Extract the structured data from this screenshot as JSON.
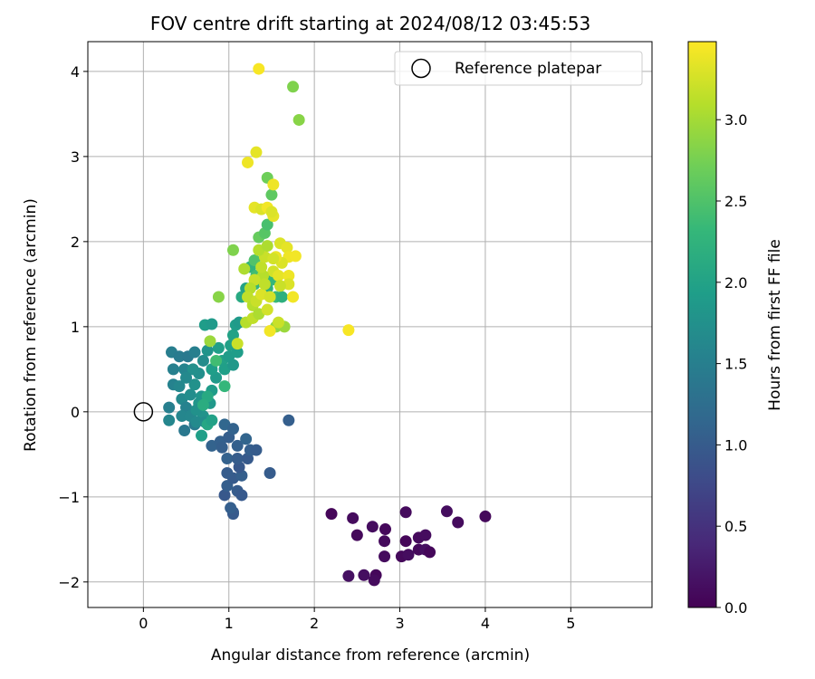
{
  "chart_data": {
    "type": "scatter",
    "title": "FOV centre drift starting at 2024/08/12 03:45:53",
    "xlabel": "Angular distance from reference (arcmin)",
    "ylabel": "Rotation from reference (arcmin)",
    "xlim": [
      -0.65,
      5.95
    ],
    "ylim": [
      -2.3,
      4.35
    ],
    "xticks": [
      "0",
      "1",
      "2",
      "3",
      "4",
      "5"
    ],
    "yticks": [
      "−2",
      "−1",
      "0",
      "1",
      "2",
      "3",
      "4"
    ],
    "grid": true,
    "legend": {
      "position": "top-right",
      "entries": [
        "Reference platepar"
      ]
    },
    "reference_point": {
      "x": 0,
      "y": 0,
      "marker": "open-circle",
      "label": "Reference platepar"
    },
    "colorbar": {
      "label": "Hours from first FF file",
      "colormap": "viridis",
      "range": [
        0,
        3.48
      ],
      "ticks": [
        "0.0",
        "0.5",
        "1.0",
        "1.5",
        "2.0",
        "2.5",
        "3.0"
      ],
      "colors": [
        "#440154",
        "#482878",
        "#3e4a89",
        "#31688e",
        "#26828e",
        "#1f9e89",
        "#35b779",
        "#6ece58",
        "#b5de2b",
        "#fde725"
      ]
    },
    "series": [
      {
        "points": [
          {
            "x": 2.2,
            "y": -1.2,
            "c": 0.05
          },
          {
            "x": 2.45,
            "y": -1.25,
            "c": 0.1
          },
          {
            "x": 2.5,
            "y": -1.45,
            "c": 0.08
          },
          {
            "x": 2.68,
            "y": -1.35,
            "c": 0.12
          },
          {
            "x": 2.83,
            "y": -1.38,
            "c": 0.07
          },
          {
            "x": 2.82,
            "y": -1.52,
            "c": 0.09
          },
          {
            "x": 2.82,
            "y": -1.7,
            "c": 0.11
          },
          {
            "x": 2.4,
            "y": -1.93,
            "c": 0.15
          },
          {
            "x": 2.58,
            "y": -1.92,
            "c": 0.13
          },
          {
            "x": 2.72,
            "y": -1.92,
            "c": 0.06
          },
          {
            "x": 2.7,
            "y": -1.98,
            "c": 0.1
          },
          {
            "x": 3.02,
            "y": -1.7,
            "c": 0.08
          },
          {
            "x": 3.1,
            "y": -1.68,
            "c": 0.12
          },
          {
            "x": 3.07,
            "y": -1.52,
            "c": 0.05
          },
          {
            "x": 3.07,
            "y": -1.18,
            "c": 0.1
          },
          {
            "x": 3.22,
            "y": -1.48,
            "c": 0.09
          },
          {
            "x": 3.3,
            "y": -1.45,
            "c": 0.11
          },
          {
            "x": 3.22,
            "y": -1.62,
            "c": 0.07
          },
          {
            "x": 3.3,
            "y": -1.62,
            "c": 0.14
          },
          {
            "x": 3.35,
            "y": -1.65,
            "c": 0.06
          },
          {
            "x": 3.55,
            "y": -1.17,
            "c": 0.12
          },
          {
            "x": 3.68,
            "y": -1.3,
            "c": 0.1
          },
          {
            "x": 4.0,
            "y": -1.23,
            "c": 0.08
          },
          {
            "x": 1.7,
            "y": -0.1,
            "c": 1.05
          },
          {
            "x": 1.48,
            "y": -0.72,
            "c": 1.0
          },
          {
            "x": 0.95,
            "y": -0.98,
            "c": 0.95
          },
          {
            "x": 1.05,
            "y": -1.18,
            "c": 1.02
          },
          {
            "x": 1.05,
            "y": -1.2,
            "c": 0.98
          },
          {
            "x": 1.02,
            "y": -1.13,
            "c": 1.05
          },
          {
            "x": 1.1,
            "y": -0.93,
            "c": 1.0
          },
          {
            "x": 1.15,
            "y": -0.98,
            "c": 0.97
          },
          {
            "x": 0.98,
            "y": -0.87,
            "c": 1.03
          },
          {
            "x": 1.05,
            "y": -0.78,
            "c": 0.99
          },
          {
            "x": 0.98,
            "y": -0.72,
            "c": 1.01
          },
          {
            "x": 1.15,
            "y": -0.75,
            "c": 1.04
          },
          {
            "x": 1.12,
            "y": -0.65,
            "c": 0.96
          },
          {
            "x": 0.98,
            "y": -0.55,
            "c": 1.08
          },
          {
            "x": 1.1,
            "y": -0.55,
            "c": 1.02
          },
          {
            "x": 1.22,
            "y": -0.55,
            "c": 0.98
          },
          {
            "x": 1.25,
            "y": -0.45,
            "c": 1.05
          },
          {
            "x": 1.32,
            "y": -0.45,
            "c": 1.0
          },
          {
            "x": 0.8,
            "y": -0.4,
            "c": 1.1
          },
          {
            "x": 0.9,
            "y": -0.35,
            "c": 1.07
          },
          {
            "x": 1.0,
            "y": -0.3,
            "c": 1.03
          },
          {
            "x": 1.1,
            "y": -0.4,
            "c": 1.06
          },
          {
            "x": 1.2,
            "y": -0.32,
            "c": 1.12
          },
          {
            "x": 0.95,
            "y": -0.15,
            "c": 1.15
          },
          {
            "x": 1.05,
            "y": -0.2,
            "c": 1.09
          },
          {
            "x": 0.92,
            "y": -0.42,
            "c": 1.04
          },
          {
            "x": 0.3,
            "y": 0.05,
            "c": 1.5
          },
          {
            "x": 0.3,
            "y": -0.1,
            "c": 1.6
          },
          {
            "x": 0.35,
            "y": 0.32,
            "c": 1.55
          },
          {
            "x": 0.35,
            "y": 0.5,
            "c": 1.52
          },
          {
            "x": 0.33,
            "y": 0.7,
            "c": 1.48
          },
          {
            "x": 0.42,
            "y": 0.65,
            "c": 1.45
          },
          {
            "x": 0.48,
            "y": 0.5,
            "c": 1.58
          },
          {
            "x": 0.52,
            "y": 0.65,
            "c": 1.42
          },
          {
            "x": 0.6,
            "y": 0.7,
            "c": 1.5
          },
          {
            "x": 0.42,
            "y": 0.3,
            "c": 1.62
          },
          {
            "x": 0.45,
            "y": 0.15,
            "c": 1.65
          },
          {
            "x": 0.5,
            "y": 0.05,
            "c": 1.55
          },
          {
            "x": 0.45,
            "y": -0.05,
            "c": 1.6
          },
          {
            "x": 0.48,
            "y": -0.22,
            "c": 1.4
          },
          {
            "x": 0.6,
            "y": -0.15,
            "c": 1.45
          },
          {
            "x": 0.55,
            "y": 0.2,
            "c": 1.7
          },
          {
            "x": 0.6,
            "y": 0.32,
            "c": 1.75
          },
          {
            "x": 0.65,
            "y": 0.45,
            "c": 1.72
          },
          {
            "x": 0.7,
            "y": 0.6,
            "c": 1.68
          },
          {
            "x": 0.75,
            "y": 0.72,
            "c": 1.8
          },
          {
            "x": 0.65,
            "y": 0.1,
            "c": 1.82
          },
          {
            "x": 0.7,
            "y": -0.05,
            "c": 1.78
          },
          {
            "x": 0.55,
            "y": -0.05,
            "c": 1.62
          },
          {
            "x": 0.62,
            "y": -0.12,
            "c": 1.66
          },
          {
            "x": 0.72,
            "y": -0.12,
            "c": 1.7
          },
          {
            "x": 0.78,
            "y": 0.1,
            "c": 1.85
          },
          {
            "x": 0.8,
            "y": 0.25,
            "c": 1.9
          },
          {
            "x": 0.58,
            "y": 0.5,
            "c": 1.74
          },
          {
            "x": 0.5,
            "y": 0.4,
            "c": 1.64
          },
          {
            "x": 0.62,
            "y": 0.02,
            "c": 1.76
          },
          {
            "x": 0.68,
            "y": 0.18,
            "c": 1.8
          },
          {
            "x": 0.85,
            "y": 0.4,
            "c": 1.88
          },
          {
            "x": 0.8,
            "y": 0.5,
            "c": 1.93
          },
          {
            "x": 0.72,
            "y": 1.02,
            "c": 1.92
          },
          {
            "x": 0.8,
            "y": 1.03,
            "c": 1.88
          },
          {
            "x": 0.88,
            "y": 0.75,
            "c": 1.95
          },
          {
            "x": 0.92,
            "y": 0.6,
            "c": 1.98
          },
          {
            "x": 0.95,
            "y": 0.5,
            "c": 1.95
          },
          {
            "x": 1.0,
            "y": 0.65,
            "c": 1.9
          },
          {
            "x": 1.02,
            "y": 0.78,
            "c": 1.97
          },
          {
            "x": 1.05,
            "y": 0.9,
            "c": 2.0
          },
          {
            "x": 1.08,
            "y": 1.02,
            "c": 1.93
          },
          {
            "x": 1.12,
            "y": 1.05,
            "c": 1.88
          },
          {
            "x": 1.05,
            "y": 0.55,
            "c": 1.85
          },
          {
            "x": 1.1,
            "y": 0.7,
            "c": 1.92
          },
          {
            "x": 0.68,
            "y": -0.28,
            "c": 1.95
          },
          {
            "x": 0.75,
            "y": -0.15,
            "c": 2.05
          },
          {
            "x": 0.8,
            "y": -0.1,
            "c": 1.98
          },
          {
            "x": 0.75,
            "y": 0.18,
            "c": 2.1
          },
          {
            "x": 0.7,
            "y": 0.08,
            "c": 2.15
          },
          {
            "x": 0.95,
            "y": 0.3,
            "c": 2.3
          },
          {
            "x": 0.85,
            "y": 0.6,
            "c": 2.4
          },
          {
            "x": 0.88,
            "y": 1.35,
            "c": 2.85
          },
          {
            "x": 0.78,
            "y": 0.83,
            "c": 2.95
          },
          {
            "x": 1.15,
            "y": 1.35,
            "c": 2.1
          },
          {
            "x": 1.2,
            "y": 1.45,
            "c": 2.0
          },
          {
            "x": 1.25,
            "y": 1.7,
            "c": 2.25
          },
          {
            "x": 1.3,
            "y": 1.78,
            "c": 2.5
          },
          {
            "x": 1.35,
            "y": 2.05,
            "c": 2.65
          },
          {
            "x": 1.42,
            "y": 2.1,
            "c": 2.55
          },
          {
            "x": 1.45,
            "y": 2.2,
            "c": 2.45
          },
          {
            "x": 1.5,
            "y": 2.55,
            "c": 2.6
          },
          {
            "x": 1.45,
            "y": 2.75,
            "c": 2.7
          },
          {
            "x": 1.05,
            "y": 1.9,
            "c": 2.8
          },
          {
            "x": 1.3,
            "y": 1.5,
            "c": 2.3
          },
          {
            "x": 1.32,
            "y": 1.6,
            "c": 2.4
          },
          {
            "x": 1.55,
            "y": 1.35,
            "c": 2.35
          },
          {
            "x": 1.62,
            "y": 1.35,
            "c": 2.2
          },
          {
            "x": 1.55,
            "y": 1.0,
            "c": 2.9
          },
          {
            "x": 1.65,
            "y": 1.0,
            "c": 2.95
          },
          {
            "x": 1.75,
            "y": 3.82,
            "c": 2.8
          },
          {
            "x": 1.82,
            "y": 3.43,
            "c": 2.85
          },
          {
            "x": 1.45,
            "y": 1.45,
            "c": 2.2
          },
          {
            "x": 1.5,
            "y": 1.55,
            "c": 2.3
          },
          {
            "x": 1.35,
            "y": 4.03,
            "c": 3.45
          },
          {
            "x": 1.32,
            "y": 3.05,
            "c": 3.35
          },
          {
            "x": 1.22,
            "y": 2.93,
            "c": 3.4
          },
          {
            "x": 1.52,
            "y": 2.67,
            "c": 3.4
          },
          {
            "x": 1.3,
            "y": 2.4,
            "c": 3.35
          },
          {
            "x": 1.38,
            "y": 2.38,
            "c": 3.3
          },
          {
            "x": 1.45,
            "y": 2.4,
            "c": 3.42
          },
          {
            "x": 1.52,
            "y": 2.3,
            "c": 3.35
          },
          {
            "x": 1.5,
            "y": 2.35,
            "c": 3.3
          },
          {
            "x": 1.6,
            "y": 1.98,
            "c": 3.3
          },
          {
            "x": 1.68,
            "y": 1.93,
            "c": 3.35
          },
          {
            "x": 1.7,
            "y": 1.82,
            "c": 3.4
          },
          {
            "x": 1.78,
            "y": 1.83,
            "c": 3.42
          },
          {
            "x": 1.62,
            "y": 1.75,
            "c": 3.3
          },
          {
            "x": 1.55,
            "y": 1.82,
            "c": 3.38
          },
          {
            "x": 1.52,
            "y": 1.65,
            "c": 3.25
          },
          {
            "x": 1.58,
            "y": 1.6,
            "c": 3.35
          },
          {
            "x": 1.7,
            "y": 1.6,
            "c": 3.4
          },
          {
            "x": 1.7,
            "y": 1.5,
            "c": 3.3
          },
          {
            "x": 1.75,
            "y": 1.35,
            "c": 3.42
          },
          {
            "x": 1.6,
            "y": 1.48,
            "c": 3.2
          },
          {
            "x": 1.4,
            "y": 1.6,
            "c": 3.1
          },
          {
            "x": 1.38,
            "y": 1.7,
            "c": 3.15
          },
          {
            "x": 1.42,
            "y": 1.82,
            "c": 3.2
          },
          {
            "x": 1.35,
            "y": 1.9,
            "c": 3.1
          },
          {
            "x": 1.45,
            "y": 1.95,
            "c": 3.05
          },
          {
            "x": 1.3,
            "y": 1.55,
            "c": 3.2
          },
          {
            "x": 1.25,
            "y": 1.45,
            "c": 3.1
          },
          {
            "x": 1.22,
            "y": 1.35,
            "c": 3.15
          },
          {
            "x": 1.28,
            "y": 1.25,
            "c": 3.1
          },
          {
            "x": 1.32,
            "y": 1.3,
            "c": 3.2
          },
          {
            "x": 1.38,
            "y": 1.38,
            "c": 3.3
          },
          {
            "x": 1.48,
            "y": 1.35,
            "c": 3.25
          },
          {
            "x": 1.2,
            "y": 1.05,
            "c": 3.1
          },
          {
            "x": 1.28,
            "y": 1.1,
            "c": 3.15
          },
          {
            "x": 1.58,
            "y": 1.05,
            "c": 3.2
          },
          {
            "x": 1.48,
            "y": 0.95,
            "c": 3.42
          },
          {
            "x": 1.1,
            "y": 0.8,
            "c": 3.2
          },
          {
            "x": 2.4,
            "y": 0.96,
            "c": 3.45
          },
          {
            "x": 1.18,
            "y": 1.68,
            "c": 3.05
          },
          {
            "x": 1.42,
            "y": 1.5,
            "c": 3.15
          },
          {
            "x": 1.52,
            "y": 1.8,
            "c": 3.25
          },
          {
            "x": 1.35,
            "y": 1.15,
            "c": 3.05
          },
          {
            "x": 1.45,
            "y": 1.2,
            "c": 3.25
          }
        ]
      }
    ]
  }
}
